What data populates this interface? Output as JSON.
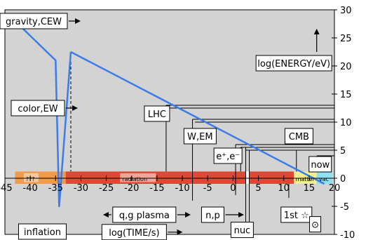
{
  "chart_data": {
    "type": "line",
    "title": "",
    "xlabel": "log(TIME/s)",
    "ylabel": "log(ENERGY/eV)",
    "xlim": [
      -45,
      20
    ],
    "ylim": [
      -10,
      30
    ],
    "x_ticks": [
      -45,
      -40,
      -35,
      -30,
      -25,
      -20,
      -15,
      -10,
      -5,
      0,
      5,
      10,
      15,
      20
    ],
    "y_ticks": [
      -10,
      -5,
      0,
      5,
      10,
      15,
      20,
      25,
      30
    ],
    "grid": false,
    "legend": "none",
    "colors": {
      "plot_background": "#d3d3d3",
      "curve": "#3a7ce8",
      "era_planck": "#f29a4c",
      "era_radiation": "#dc4a35",
      "era_matter": "#f2f08f",
      "era_vacuum": "#8fe0f2",
      "era_gap": "#ffffff"
    },
    "series": [
      {
        "x": [
          -43,
          -35,
          -34.3,
          -32
        ],
        "y": [
          28,
          21,
          -5,
          22.5
        ]
      },
      {
        "x": [
          -32,
          18
        ],
        "y": [
          22.5,
          -1
        ]
      }
    ],
    "eras": [
      {
        "label": "???",
        "x_start": -43,
        "x_end": -33,
        "color": "#f29a4c"
      },
      {
        "label": "radiation",
        "x_start": -33,
        "x_end": 2.5,
        "color": "#dc4a35"
      },
      {
        "label": "",
        "x_start": 2.5,
        "x_end": 3.2,
        "color": "#ffffff"
      },
      {
        "label": "",
        "x_start": 3.2,
        "x_end": 12,
        "color": "#dc4a35"
      },
      {
        "label": "matter",
        "x_start": 12,
        "x_end": 16.5,
        "color": "#f2f08f"
      },
      {
        "label": "vac",
        "x_start": 16.5,
        "x_end": 19.6,
        "color": "#8fe0f2"
      }
    ],
    "annotations": [
      {
        "text": "gravity,CEW",
        "arrow": "→",
        "x": -43,
        "y": 28
      },
      {
        "text": "color,EW",
        "arrow": "→",
        "x": -32,
        "y": 22.5
      },
      {
        "text": "LHC",
        "x": -13.2,
        "y": 13
      },
      {
        "text": "W,EM",
        "x": -8,
        "y": 10.5
      },
      {
        "text": "e⁺,e⁻",
        "x": 0,
        "y": 6
      },
      {
        "text": "CMB",
        "x": 12.5,
        "y": 5.5
      },
      {
        "text": "now",
        "x": 17.5,
        "y": 3
      },
      {
        "text": "log(ENERGY/eV)",
        "arrow": "↑"
      },
      {
        "text": "inflation",
        "x": -34.3,
        "y": -5
      },
      {
        "text": "q,g plasma",
        "arrow": "↔",
        "x_start": -32,
        "x_end": -5
      },
      {
        "text": "n,p",
        "arrow": "↔",
        "x_start": -5,
        "x_end": 2.5
      },
      {
        "text": "nuc",
        "x_start": 2.5,
        "x_end": 3.2
      },
      {
        "text": "1st ☆",
        "x": 15.5
      },
      {
        "text": "⊙",
        "x": 17
      },
      {
        "text": "log(TIME/s)",
        "arrow": "→"
      }
    ]
  }
}
